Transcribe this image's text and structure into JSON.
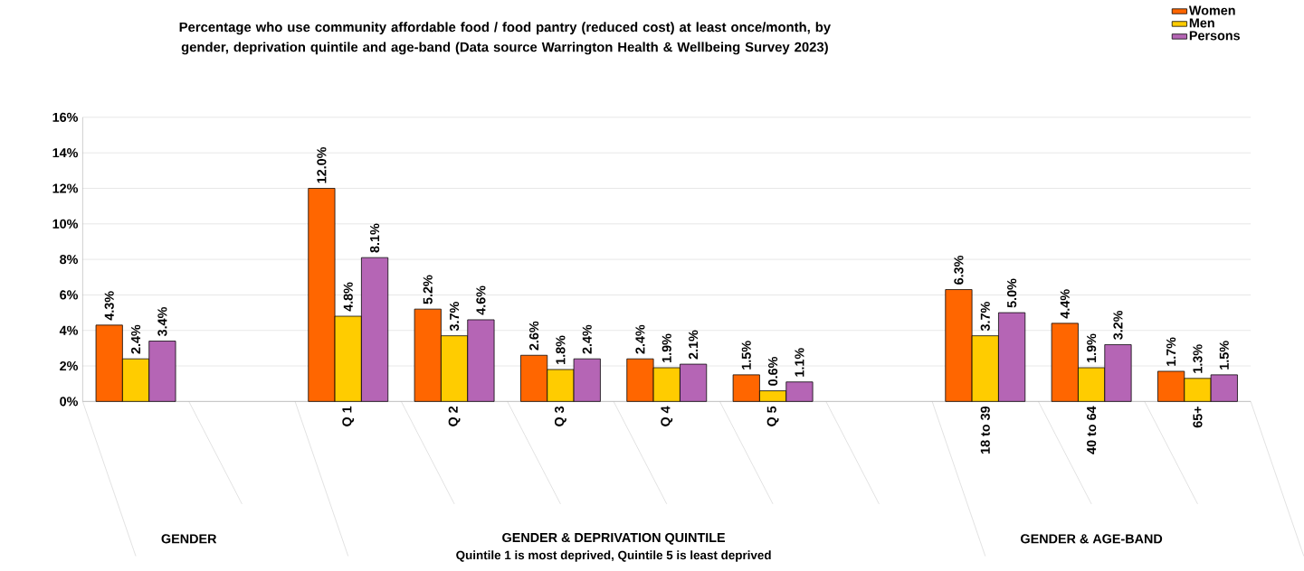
{
  "chart_data": {
    "type": "bar",
    "title": "Percentage who use community affordable food / food pantry (reduced cost) at least once/month, by gender, deprivation quintile and age-band (Data source Warrington Health & Wellbeing Survey 2023)",
    "categories": [
      null,
      null,
      "Q 1",
      "Q 2",
      "Q 3",
      "Q 4",
      "Q 5",
      null,
      "18 to 39",
      "40 to 64",
      "65+"
    ],
    "series": [
      {
        "name": "Women",
        "color": "#ff6600",
        "values": [
          4.3,
          null,
          12.0,
          5.2,
          2.6,
          2.4,
          1.5,
          null,
          6.3,
          4.4,
          1.7
        ],
        "value_labels": [
          "4.3%",
          null,
          "12.0%",
          "5.2%",
          "2.6%",
          "2.4%",
          "1.5%",
          null,
          "6.3%",
          "4.4%",
          "1.7%"
        ]
      },
      {
        "name": "Men",
        "color": "#ffcc00",
        "values": [
          2.4,
          null,
          4.8,
          3.7,
          1.8,
          1.9,
          0.6,
          null,
          3.7,
          1.9,
          1.3
        ],
        "value_labels": [
          "2.4%",
          null,
          "4.8%",
          "3.7%",
          "1.8%",
          "1.9%",
          "0.6%",
          null,
          "3.7%",
          "1.9%",
          "1.3%"
        ]
      },
      {
        "name": "Persons",
        "color": "#b565b5",
        "values": [
          3.4,
          null,
          8.1,
          4.6,
          2.4,
          2.1,
          1.1,
          null,
          5.0,
          3.2,
          1.5
        ],
        "value_labels": [
          "3.4%",
          null,
          "8.1%",
          "4.6%",
          "2.4%",
          "2.1%",
          "1.1%",
          null,
          "5.0%",
          "3.2%",
          "1.5%"
        ]
      }
    ],
    "ylim": [
      0,
      16
    ],
    "yticks": [
      {
        "value": 0,
        "label": "0%"
      },
      {
        "value": 2,
        "label": "2%"
      },
      {
        "value": 4,
        "label": "4%"
      },
      {
        "value": 6,
        "label": "6%"
      },
      {
        "value": 8,
        "label": "8%"
      },
      {
        "value": 10,
        "label": "10%"
      },
      {
        "value": 12,
        "label": "12%"
      },
      {
        "value": 14,
        "label": "14%"
      },
      {
        "value": 16,
        "label": "16%"
      }
    ],
    "grid": "y",
    "legend": "top right",
    "annotations": [
      "GENDER",
      "GENDER & DEPRIVATION QUINTILE",
      "GENDER & AGE-BAND",
      "Quintile 1 is most deprived, Quintile 5 is least deprived"
    ]
  }
}
